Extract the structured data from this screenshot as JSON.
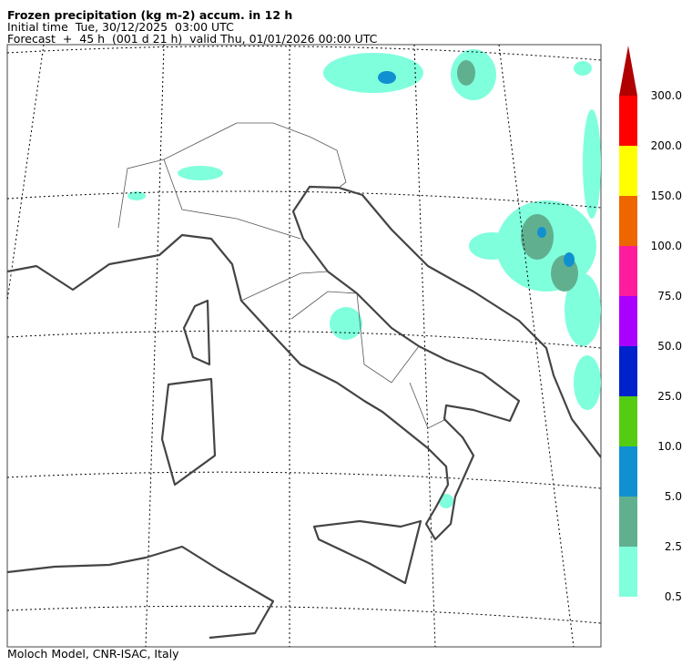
{
  "header": {
    "title": "Frozen precipitation (kg m-2) accum. in 12 h",
    "initial_time": "Initial time  Tue, 30/12/2025  03:00 UTC",
    "forecast": "Forecast  +  45 h  (001 d 21 h)  valid Thu, 01/01/2026 00:00 UTC"
  },
  "colorbar": {
    "labels": [
      "0.5",
      "2.5",
      "5.0",
      "10.0",
      "25.0",
      "50.0",
      "75.0",
      "100.0",
      "150.0",
      "200.0",
      "300.0"
    ],
    "colors": [
      "#80ffdd",
      "#60b090",
      "#1090d0",
      "#55cc11",
      "#0022cc",
      "#aa00ff",
      "#ff1c9c",
      "#ee6600",
      "#ffff00",
      "#ff0000"
    ],
    "extend_color": "#b00000"
  },
  "footer": "Moloch Model, CNR-ISAC, Italy"
}
